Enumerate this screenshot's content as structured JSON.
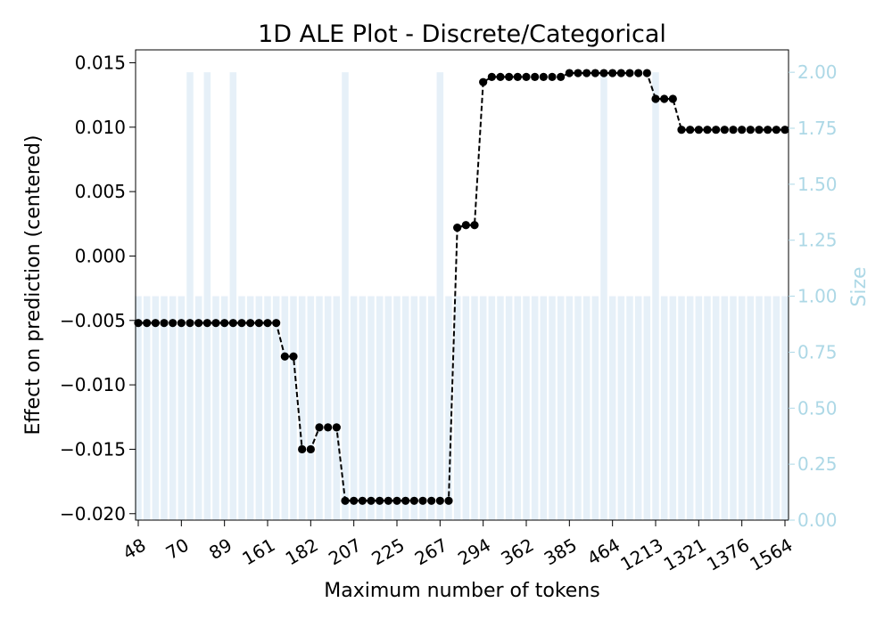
{
  "chart_data": {
    "type": "line",
    "title": "1D ALE Plot - Discrete/Categorical",
    "xlabel": "Maximum number of tokens",
    "ylabel": "Effect on prediction (centered)",
    "y2label": "Size",
    "ylim": [
      -0.0205,
      0.016
    ],
    "y2lim": [
      0,
      2.1
    ],
    "yticks": [
      "0.015",
      "0.010",
      "0.005",
      "0.000",
      "−0.005",
      "−0.010",
      "−0.015",
      "−0.020"
    ],
    "y2ticks": [
      "2.00",
      "1.75",
      "1.50",
      "1.25",
      "1.00",
      "0.75",
      "0.50",
      "0.25",
      "0.00"
    ],
    "xtick_labels": [
      "48",
      "70",
      "89",
      "161",
      "182",
      "207",
      "225",
      "267",
      "294",
      "362",
      "385",
      "464",
      "1213",
      "1321",
      "1376",
      "1564"
    ],
    "xtick_positions": [
      0,
      5,
      10,
      15,
      20,
      25,
      30,
      35,
      40,
      45,
      50,
      55,
      60,
      65,
      70,
      75
    ],
    "num_categories": 76,
    "grid": false,
    "colors": {
      "line": "#000000",
      "bars": "#e6f0f8",
      "right_axis": "#add8e6"
    },
    "series": [
      {
        "values": [
          -0.0052,
          -0.0052,
          -0.0052,
          -0.0052,
          -0.0052,
          -0.0052,
          -0.0052,
          -0.0052,
          -0.0052,
          -0.0052,
          -0.0052,
          -0.0052,
          -0.0052,
          -0.0052,
          -0.0052,
          -0.0052,
          -0.0052,
          -0.0078,
          -0.0078,
          -0.015,
          -0.015,
          -0.0133,
          -0.0133,
          -0.0133,
          -0.019,
          -0.019,
          -0.019,
          -0.019,
          -0.019,
          -0.019,
          -0.019,
          -0.019,
          -0.019,
          -0.019,
          -0.019,
          -0.019,
          -0.019,
          0.0022,
          0.0024,
          0.0024,
          0.0135,
          0.0139,
          0.0139,
          0.0139,
          0.0139,
          0.0139,
          0.0139,
          0.0139,
          0.0139,
          0.0139,
          0.0142,
          0.0142,
          0.0142,
          0.0142,
          0.0142,
          0.0142,
          0.0142,
          0.0142,
          0.0142,
          0.0142,
          0.0122,
          0.0122,
          0.0122,
          0.0098,
          0.0098,
          0.0098,
          0.0098,
          0.0098,
          0.0098,
          0.0098,
          0.0098,
          0.0098,
          0.0098,
          0.0098,
          0.0098,
          0.0098
        ]
      }
    ],
    "sizes": [
      1,
      1,
      1,
      1,
      1,
      1,
      2,
      1,
      2,
      1,
      1,
      2,
      1,
      1,
      1,
      1,
      1,
      1,
      1,
      1,
      1,
      1,
      1,
      1,
      2,
      1,
      1,
      1,
      1,
      1,
      1,
      1,
      1,
      1,
      1,
      2,
      1,
      1,
      1,
      1,
      1,
      1,
      1,
      1,
      1,
      1,
      1,
      1,
      1,
      1,
      1,
      1,
      1,
      1,
      2,
      1,
      1,
      1,
      1,
      1,
      2,
      1,
      1,
      1,
      1,
      1,
      1,
      1,
      1,
      1,
      1,
      1,
      1,
      1,
      1,
      1
    ]
  }
}
